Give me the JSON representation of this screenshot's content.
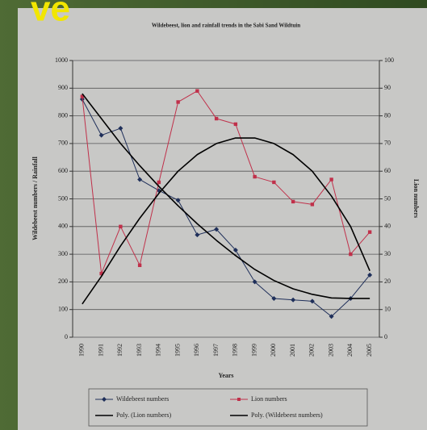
{
  "slide_fragment": "ve",
  "chart_data": {
    "type": "line",
    "title": "Wildebeest, lion and rainfall trends in the Sabi Sand Wildtuin",
    "x_label": "Years",
    "y_label": "Wildebeest numbers / Rainfall",
    "y2_label": "Lion numbers",
    "categories": [
      "1990",
      "1991",
      "1992",
      "1993",
      "1994",
      "1995",
      "1996",
      "1997",
      "1998",
      "1999",
      "2000",
      "2001",
      "2002",
      "2003",
      "2004",
      "2005"
    ],
    "ylim": [
      0,
      1000
    ],
    "yticks": [
      0,
      100,
      200,
      300,
      400,
      500,
      600,
      700,
      800,
      900,
      1000
    ],
    "y2lim": [
      0,
      100
    ],
    "y2ticks": [
      0,
      10,
      20,
      30,
      40,
      50,
      60,
      70,
      80,
      90,
      100
    ],
    "grid": true,
    "legend": "bottom",
    "series": [
      {
        "name": "Wildebeest numbers",
        "color": "#1f2f5a",
        "marker": "diamond",
        "values": [
          860,
          730,
          755,
          570,
          530,
          495,
          370,
          390,
          315,
          200,
          140,
          135,
          130,
          75,
          140,
          225
        ]
      },
      {
        "name": "Lion numbers",
        "color": "#c0304a",
        "marker": "square",
        "axis": "y2",
        "values": [
          87,
          23,
          40,
          26,
          56,
          85,
          89,
          79,
          77,
          58,
          56,
          49,
          48,
          57,
          30,
          38
        ]
      },
      {
        "name": "Poly. (Lion numbers)",
        "color": "#000000",
        "axis": "y2",
        "values": [
          12,
          22,
          33,
          43,
          52,
          60,
          66,
          70,
          72,
          72,
          70,
          66,
          60,
          51,
          40,
          24
        ]
      },
      {
        "name": "Poly. (Wildebeest numbers)",
        "color": "#000000",
        "values": [
          880,
          790,
          700,
          620,
          545,
          475,
          410,
          350,
          295,
          245,
          205,
          175,
          155,
          142,
          140,
          140
        ]
      }
    ]
  }
}
